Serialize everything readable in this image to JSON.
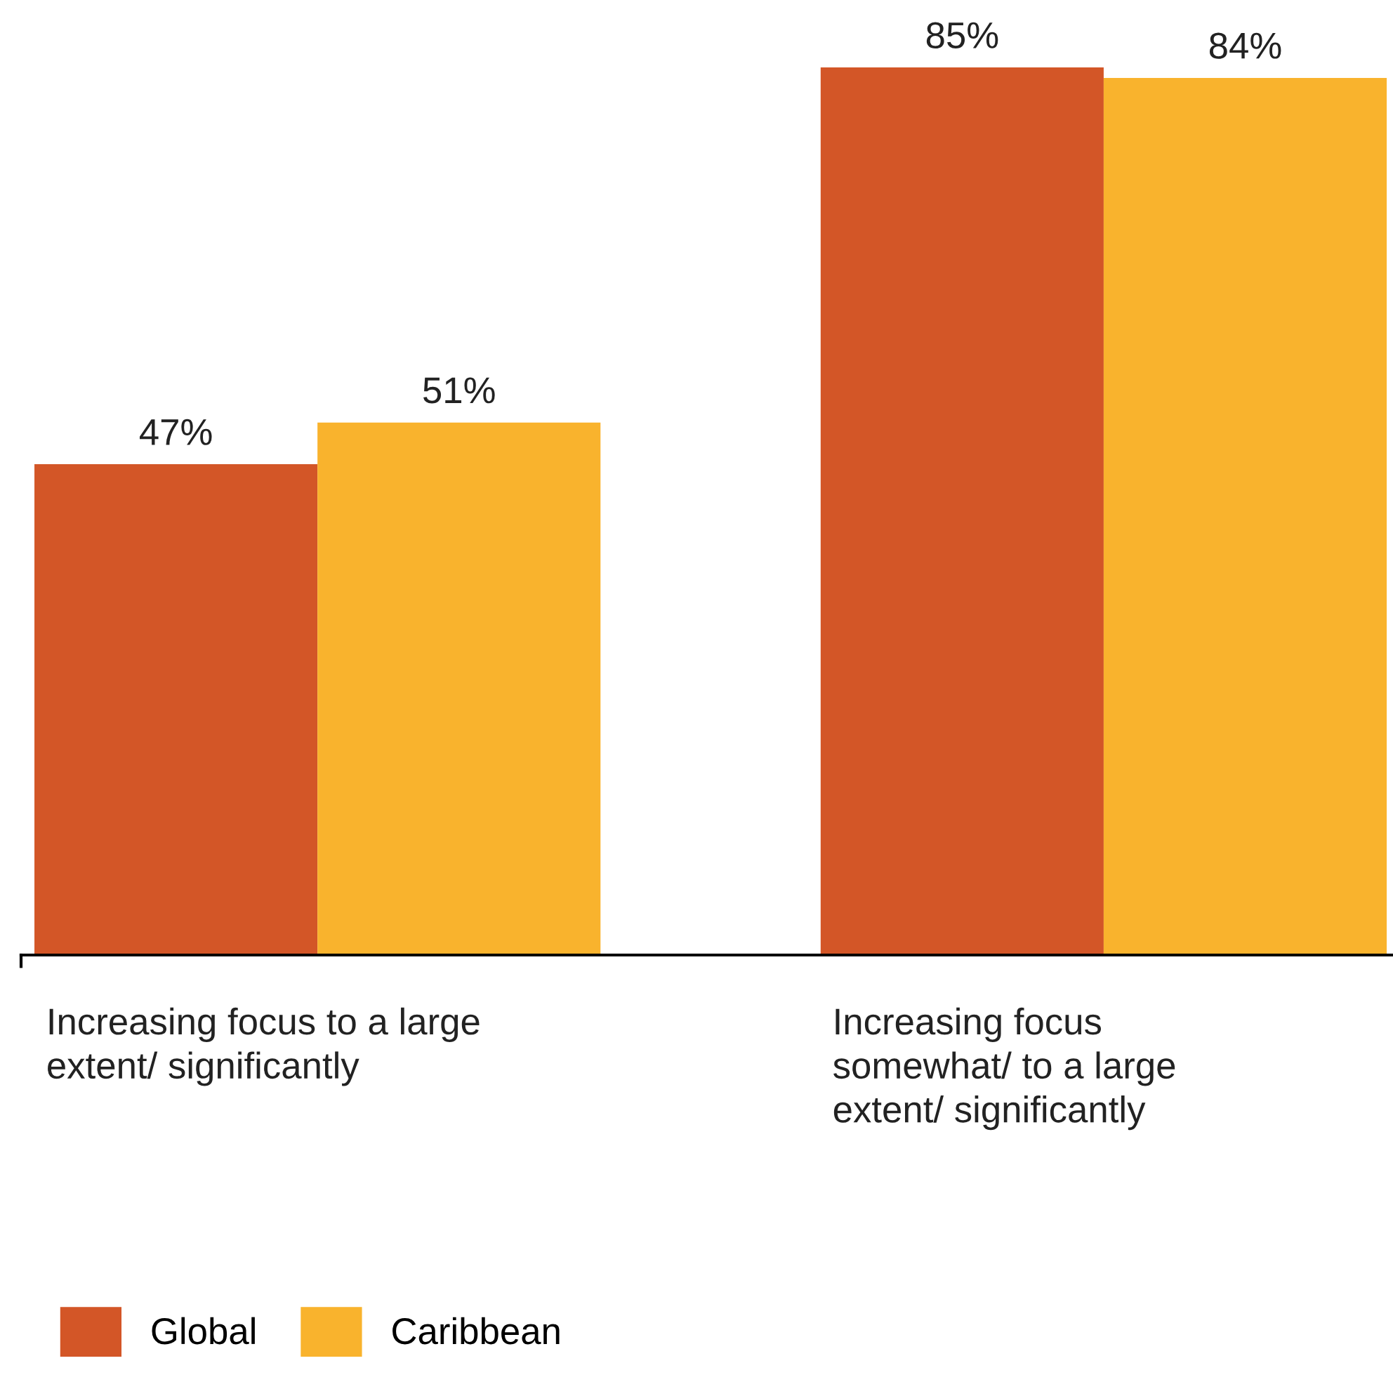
{
  "chart_data": {
    "type": "bar",
    "categories": [
      "Increasing focus to a large\nextent/ significantly",
      "Increasing focus\nsomewhat/ to a large\nextent/ significantly"
    ],
    "series": [
      {
        "name": "Global",
        "color": "#d35627",
        "values": [
          47,
          85
        ],
        "value_labels": [
          "47%",
          "85%"
        ]
      },
      {
        "name": "Caribbean",
        "color": "#f9b32d",
        "values": [
          51,
          84
        ],
        "value_labels": [
          "51%",
          "84%"
        ]
      }
    ],
    "legend": "bottom left"
  }
}
